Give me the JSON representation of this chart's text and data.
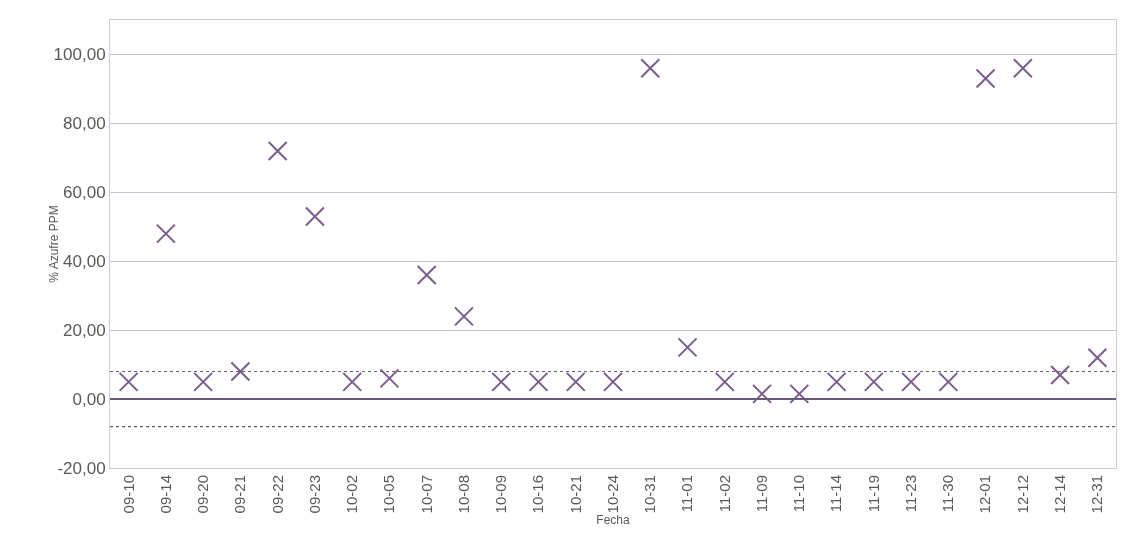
{
  "chart_data": {
    "type": "scatter",
    "xlabel": "Fecha",
    "ylabel": "% Azufre PPM",
    "categories": [
      "09-10",
      "09-14",
      "09-20",
      "09-21",
      "09-22",
      "09-23",
      "10-02",
      "10-05",
      "10-07",
      "10-08",
      "10-09",
      "10-16",
      "10-21",
      "10-24",
      "10-31",
      "11-01",
      "11-02",
      "11-09",
      "11-10",
      "11-14",
      "11-19",
      "11-23",
      "11-30",
      "12-01",
      "12-12",
      "12-14",
      "12-31"
    ],
    "series": [
      {
        "color": "#7b5c8e",
        "values": [
          5,
          48,
          5,
          8,
          72,
          53,
          5,
          6,
          36,
          24,
          5,
          5,
          5,
          5,
          96,
          15,
          5,
          1.5,
          1.5,
          5,
          5,
          5,
          5,
          93,
          96,
          7,
          12
        ]
      }
    ],
    "ylim": [
      -20,
      110
    ],
    "yticks": [
      {
        "value": -20,
        "label": "-20,00"
      },
      {
        "value": 0,
        "label": "0,00"
      },
      {
        "value": 20,
        "label": "20,00"
      },
      {
        "value": 40,
        "label": "40,00"
      },
      {
        "value": 60,
        "label": "60,00"
      },
      {
        "value": 80,
        "label": "80,00"
      },
      {
        "value": 100,
        "label": "100,00"
      }
    ],
    "ref_lines": [
      {
        "axis": "y",
        "value": 0,
        "color": "#6a5a7a",
        "line_style": "solid"
      },
      {
        "axis": "y",
        "value": 8,
        "color": "#6a5a7a",
        "line_style": "dotted"
      },
      {
        "axis": "y",
        "value": -8,
        "color": "#6a5a7a",
        "line_style": "dotted"
      }
    ],
    "grid": "y",
    "marker": "cross"
  }
}
